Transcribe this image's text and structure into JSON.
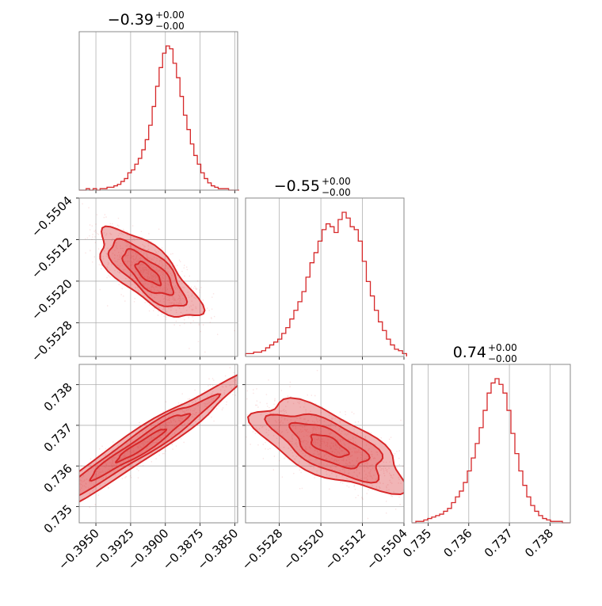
{
  "chart_data": {
    "type": "corner",
    "color": "#d62728",
    "grid": true,
    "parameters": [
      {
        "title_value": "−0.39",
        "title_plus": "+0.00",
        "title_minus": "−0.00",
        "range": [
          -0.3962,
          -0.3848
        ],
        "ticks": [
          -0.395,
          -0.3925,
          -0.39,
          -0.3875,
          -0.385
        ],
        "tick_labels": [
          "−0.3950",
          "−0.3925",
          "−0.3900",
          "−0.3875",
          "−0.3850"
        ],
        "hist": {
          "start": -0.3962,
          "step": 0.00025,
          "counts": [
            0,
            0,
            1,
            0,
            1,
            0,
            1,
            1,
            2,
            2,
            3,
            4,
            6,
            8,
            12,
            14,
            18,
            22,
            28,
            35,
            45,
            58,
            72,
            85,
            95,
            100,
            98,
            88,
            78,
            65,
            52,
            42,
            32,
            24,
            18,
            12,
            8,
            5,
            3,
            2,
            1,
            1,
            1,
            0,
            0,
            0
          ]
        }
      },
      {
        "title_value": "−0.55",
        "title_plus": "+0.00",
        "title_minus": "−0.00",
        "range": [
          -0.55345,
          -0.5504
        ],
        "ticks": [
          -0.5528,
          -0.552,
          -0.5512,
          -0.5504
        ],
        "tick_labels": [
          "−0.5528",
          "−0.5520",
          "−0.5512",
          "−0.5504"
        ],
        "hist": {
          "start": -0.55345,
          "step": 7.75e-05,
          "counts": [
            2,
            2,
            3,
            3,
            4,
            6,
            8,
            10,
            12,
            16,
            20,
            26,
            32,
            38,
            45,
            55,
            65,
            72,
            80,
            88,
            92,
            90,
            86,
            95,
            100,
            96,
            90,
            88,
            80,
            66,
            52,
            42,
            32,
            24,
            18,
            12,
            8,
            5,
            4,
            2
          ]
        }
      },
      {
        "title_value": "0.74",
        "title_plus": "+0.00",
        "title_minus": "−0.00",
        "range": [
          0.7346,
          0.7385
        ],
        "ticks": [
          0.735,
          0.736,
          0.737,
          0.738
        ],
        "tick_labels": [
          "0.735",
          "0.736",
          "0.737",
          "0.738"
        ],
        "hist": {
          "start": 0.7346,
          "step": 9.75e-05,
          "counts": [
            0,
            1,
            1,
            2,
            3,
            4,
            5,
            6,
            8,
            10,
            14,
            18,
            22,
            28,
            36,
            45,
            55,
            66,
            78,
            90,
            97,
            100,
            96,
            90,
            78,
            62,
            48,
            36,
            26,
            18,
            12,
            8,
            5,
            3,
            2,
            1,
            1,
            1,
            0,
            0
          ]
        }
      }
    ],
    "pairs": [
      {
        "x_param": 0,
        "y_param": 1,
        "center": [
          -0.39125,
          -0.55185
        ],
        "axis1": [
          0.00175,
          -0.00038
        ],
        "axis2": [
          0.00045,
          0.0002
        ],
        "levels": [
          0.5,
          1.0,
          1.5,
          2.0
        ]
      },
      {
        "x_param": 0,
        "y_param": 2,
        "center": [
          -0.3918,
          0.7365
        ],
        "axis1": [
          0.0035,
          0.0008
        ],
        "axis2": [
          -0.00045,
          0.00012
        ],
        "levels": [
          0.5,
          1.0,
          1.5,
          2.0
        ]
      },
      {
        "x_param": 1,
        "y_param": 2,
        "center": [
          -0.55185,
          0.7365
        ],
        "axis1": [
          0.00065,
          -0.0005
        ],
        "axis2": [
          0.0003,
          0.00022
        ],
        "levels": [
          0.5,
          1.0,
          1.5,
          2.0
        ]
      }
    ]
  }
}
